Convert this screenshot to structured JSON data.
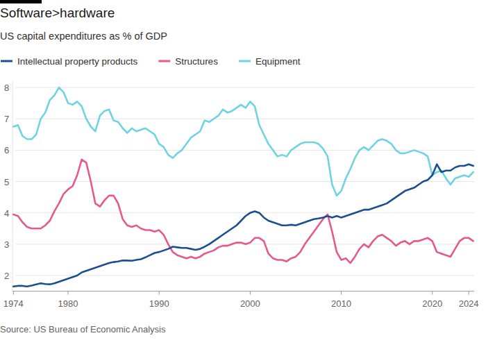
{
  "chart_data": {
    "type": "line",
    "title": "Software>hardware",
    "subtitle": "US capital expenditures as % of GDP",
    "source": "Source: US Bureau of Economic Analysis",
    "x": [
      1974,
      1974.5,
      1975,
      1975.5,
      1976,
      1976.5,
      1977,
      1977.5,
      1978,
      1978.5,
      1979,
      1979.5,
      1980,
      1980.5,
      1981,
      1981.5,
      1982,
      1982.5,
      1983,
      1983.5,
      1984,
      1984.5,
      1985,
      1985.5,
      1986,
      1986.5,
      1987,
      1987.5,
      1988,
      1988.5,
      1989,
      1989.5,
      1990,
      1990.5,
      1991,
      1991.5,
      1992,
      1992.5,
      1993,
      1993.5,
      1994,
      1994.5,
      1995,
      1995.5,
      1996,
      1996.5,
      1997,
      1997.5,
      1998,
      1998.5,
      1999,
      1999.5,
      2000,
      2000.5,
      2001,
      2001.5,
      2002,
      2002.5,
      2003,
      2003.5,
      2004,
      2004.5,
      2005,
      2005.5,
      2006,
      2006.5,
      2007,
      2007.5,
      2008,
      2008.5,
      2009,
      2009.5,
      2010,
      2010.5,
      2011,
      2011.5,
      2012,
      2012.5,
      2013,
      2013.5,
      2014,
      2014.5,
      2015,
      2015.5,
      2016,
      2016.5,
      2017,
      2017.5,
      2018,
      2018.5,
      2019,
      2019.5,
      2020,
      2020.5,
      2021,
      2021.5,
      2022,
      2022.5,
      2023,
      2023.5,
      2024,
      2024.5
    ],
    "series": [
      {
        "name": "Intellectual property products",
        "color": "#1b4f8e",
        "values": [
          1.65,
          1.67,
          1.67,
          1.65,
          1.68,
          1.72,
          1.75,
          1.73,
          1.72,
          1.75,
          1.8,
          1.85,
          1.9,
          1.95,
          2.0,
          2.1,
          2.15,
          2.2,
          2.25,
          2.3,
          2.35,
          2.4,
          2.43,
          2.45,
          2.48,
          2.48,
          2.47,
          2.5,
          2.52,
          2.58,
          2.65,
          2.72,
          2.75,
          2.8,
          2.85,
          2.92,
          2.9,
          2.88,
          2.88,
          2.85,
          2.82,
          2.85,
          2.92,
          3.0,
          3.1,
          3.2,
          3.3,
          3.4,
          3.5,
          3.6,
          3.75,
          3.9,
          4.0,
          4.05,
          4.0,
          3.85,
          3.75,
          3.7,
          3.65,
          3.6,
          3.6,
          3.62,
          3.6,
          3.65,
          3.7,
          3.75,
          3.8,
          3.82,
          3.85,
          3.9,
          3.85,
          3.9,
          3.85,
          3.9,
          3.95,
          4.0,
          4.05,
          4.1,
          4.1,
          4.15,
          4.2,
          4.25,
          4.3,
          4.4,
          4.5,
          4.6,
          4.7,
          4.75,
          4.8,
          4.9,
          5.0,
          5.05,
          5.2,
          5.55,
          5.3,
          5.35,
          5.35,
          5.45,
          5.5,
          5.5,
          5.55,
          5.5
        ]
      },
      {
        "name": "Structures",
        "color": "#e6598c",
        "values": [
          3.95,
          3.9,
          3.7,
          3.55,
          3.5,
          3.5,
          3.5,
          3.6,
          3.75,
          4.05,
          4.3,
          4.6,
          4.75,
          4.85,
          5.2,
          5.7,
          5.6,
          5.0,
          4.3,
          4.2,
          4.4,
          4.55,
          4.55,
          4.3,
          3.8,
          3.6,
          3.55,
          3.6,
          3.5,
          3.45,
          3.45,
          3.4,
          3.45,
          3.3,
          3.0,
          2.75,
          2.65,
          2.6,
          2.55,
          2.6,
          2.55,
          2.6,
          2.7,
          2.75,
          2.8,
          2.9,
          2.95,
          2.95,
          3.0,
          3.05,
          3.05,
          3.0,
          3.05,
          3.2,
          3.2,
          3.1,
          2.7,
          2.55,
          2.5,
          2.5,
          2.45,
          2.55,
          2.6,
          2.75,
          3.0,
          3.2,
          3.4,
          3.6,
          3.8,
          3.95,
          3.4,
          2.75,
          2.5,
          2.55,
          2.4,
          2.6,
          2.85,
          3.0,
          2.9,
          3.1,
          3.25,
          3.3,
          3.2,
          3.1,
          2.95,
          3.05,
          3.1,
          3.0,
          3.1,
          3.1,
          3.15,
          3.2,
          3.1,
          2.75,
          2.7,
          2.65,
          2.6,
          2.85,
          3.1,
          3.2,
          3.2,
          3.1
        ]
      },
      {
        "name": "Equipment",
        "color": "#6fd3e2",
        "values": [
          6.75,
          6.8,
          6.45,
          6.35,
          6.35,
          6.5,
          7.0,
          7.2,
          7.6,
          7.75,
          8.0,
          7.85,
          7.5,
          7.45,
          7.55,
          7.4,
          7.0,
          6.75,
          6.6,
          7.1,
          7.25,
          7.3,
          6.95,
          6.9,
          6.7,
          6.55,
          6.7,
          6.6,
          6.65,
          6.7,
          6.6,
          6.5,
          6.2,
          6.1,
          5.85,
          5.75,
          5.9,
          6.0,
          6.2,
          6.4,
          6.5,
          6.6,
          6.95,
          6.9,
          7.0,
          7.1,
          7.3,
          7.2,
          7.25,
          7.35,
          7.45,
          7.35,
          7.55,
          7.4,
          6.8,
          6.5,
          6.2,
          6.0,
          5.8,
          5.85,
          5.8,
          6.0,
          6.1,
          6.2,
          6.25,
          6.25,
          6.25,
          6.2,
          6.05,
          5.8,
          4.9,
          4.55,
          4.7,
          5.1,
          5.4,
          5.75,
          6.0,
          6.1,
          6.0,
          6.15,
          6.3,
          6.35,
          6.3,
          6.2,
          6.0,
          5.9,
          5.9,
          5.95,
          6.0,
          5.95,
          5.9,
          5.8,
          5.2,
          5.3,
          5.35,
          5.1,
          4.9,
          5.1,
          5.15,
          5.2,
          5.15,
          5.3
        ]
      }
    ],
    "xlim": [
      1973.9,
      2024.6
    ],
    "xticks": [
      1974,
      1980,
      1990,
      2000,
      2010,
      2020,
      2024
    ],
    "ylim": [
      1.5,
      8.2
    ],
    "yticks": [
      2,
      3,
      4,
      5,
      6,
      7,
      8
    ],
    "grid": true,
    "legend": "top-left"
  }
}
